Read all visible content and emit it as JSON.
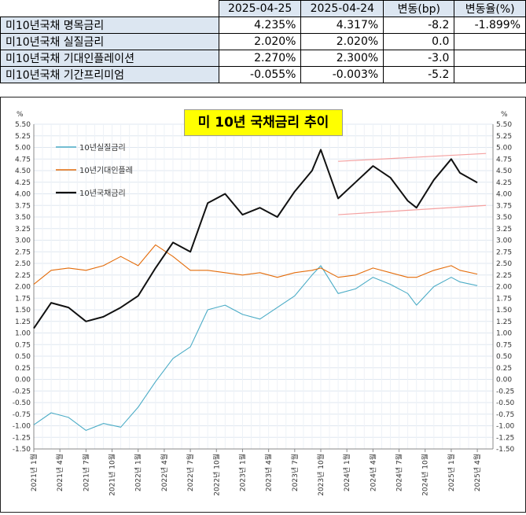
{
  "table": {
    "headers": [
      "",
      "2025-04-25",
      "2025-04-24",
      "변동(bp)",
      "변동율(%)"
    ],
    "rows": [
      {
        "name": "미10년국채 명목금리",
        "v1": "4.235%",
        "v2": "4.317%",
        "bp": "-8.2",
        "pct": "-1.899%"
      },
      {
        "name": "미10년국채 실질금리",
        "v1": "2.020%",
        "v2": "2.020%",
        "bp": "0.0",
        "pct": ""
      },
      {
        "name": "미10년국채 기대인플레이션",
        "v1": "2.270%",
        "v2": "2.300%",
        "bp": "-3.0",
        "pct": ""
      },
      {
        "name": "미10년국채 기간프리미엄",
        "v1": "-0.055%",
        "v2": "-0.003%",
        "bp": "-5.2",
        "pct": ""
      }
    ]
  },
  "chart_data": {
    "type": "line",
    "title": "미 10년 국채금리 추이",
    "ylabel_left": "%",
    "ylabel_right": "%",
    "ylim": [
      -1.5,
      5.5
    ],
    "yticks": [
      "5.50",
      "5.25",
      "5.00",
      "4.75",
      "4.50",
      "4.25",
      "4.00",
      "3.75",
      "3.50",
      "3.25",
      "3.00",
      "2.75",
      "2.50",
      "2.25",
      "2.00",
      "1.75",
      "1.50",
      "1.25",
      "1.00",
      "0.75",
      "0.50",
      "0.25",
      "0.00",
      "-0.25",
      "-0.50",
      "-0.75",
      "-1.00",
      "-1.25",
      "-1.50"
    ],
    "xticks": [
      "2021년 1월",
      "2021년 4월",
      "2021년 7월",
      "2021년 10월",
      "2022년 1월",
      "2022년 4월",
      "2022년 7월",
      "2022년 10월",
      "2023년 1월",
      "2023년 4월",
      "2023년 7월",
      "2023년 10월",
      "2024년 1월",
      "2024년 4월",
      "2024년 7월",
      "2024년 10월",
      "2025년 1월",
      "2025년 4월"
    ],
    "x_months": [
      "2021-01",
      "2021-03",
      "2021-05",
      "2021-07",
      "2021-09",
      "2021-11",
      "2022-01",
      "2022-03",
      "2022-05",
      "2022-07",
      "2022-09",
      "2022-11",
      "2023-01",
      "2023-03",
      "2023-05",
      "2023-07",
      "2023-09",
      "2023-10",
      "2023-12",
      "2024-02",
      "2024-04",
      "2024-06",
      "2024-08",
      "2024-09",
      "2024-11",
      "2025-01",
      "2025-02",
      "2025-04"
    ],
    "grid": true,
    "legend_position": "top-left",
    "series": [
      {
        "name": "10년실질금리",
        "color": "#4bacc6",
        "values": [
          -0.98,
          -0.72,
          -0.82,
          -1.1,
          -0.95,
          -1.03,
          -0.6,
          -0.05,
          0.45,
          0.7,
          1.5,
          1.6,
          1.4,
          1.3,
          1.55,
          1.8,
          2.25,
          2.45,
          1.85,
          1.95,
          2.2,
          2.05,
          1.85,
          1.6,
          2.0,
          2.2,
          2.1,
          2.02
        ]
      },
      {
        "name": "10년기대인플레",
        "color": "#e46c0a",
        "values": [
          2.05,
          2.35,
          2.4,
          2.35,
          2.45,
          2.65,
          2.45,
          2.9,
          2.65,
          2.35,
          2.35,
          2.3,
          2.25,
          2.3,
          2.2,
          2.3,
          2.35,
          2.4,
          2.2,
          2.25,
          2.4,
          2.3,
          2.2,
          2.2,
          2.35,
          2.45,
          2.35,
          2.27
        ]
      },
      {
        "name": "10년국채금리",
        "color": "#111111",
        "values": [
          1.1,
          1.65,
          1.55,
          1.25,
          1.35,
          1.55,
          1.8,
          2.4,
          2.95,
          2.75,
          3.8,
          4.0,
          3.55,
          3.7,
          3.5,
          4.05,
          4.5,
          4.95,
          3.9,
          4.25,
          4.6,
          4.35,
          3.85,
          3.7,
          4.3,
          4.75,
          4.45,
          4.24
        ]
      }
    ],
    "channel": {
      "color": "#f4a0a0",
      "upper": [
        {
          "x": "2023-12",
          "y": 4.7
        },
        {
          "x": "2025-05",
          "y": 4.87
        }
      ],
      "lower": [
        {
          "x": "2023-12",
          "y": 3.55
        },
        {
          "x": "2025-05",
          "y": 3.75
        }
      ]
    }
  }
}
